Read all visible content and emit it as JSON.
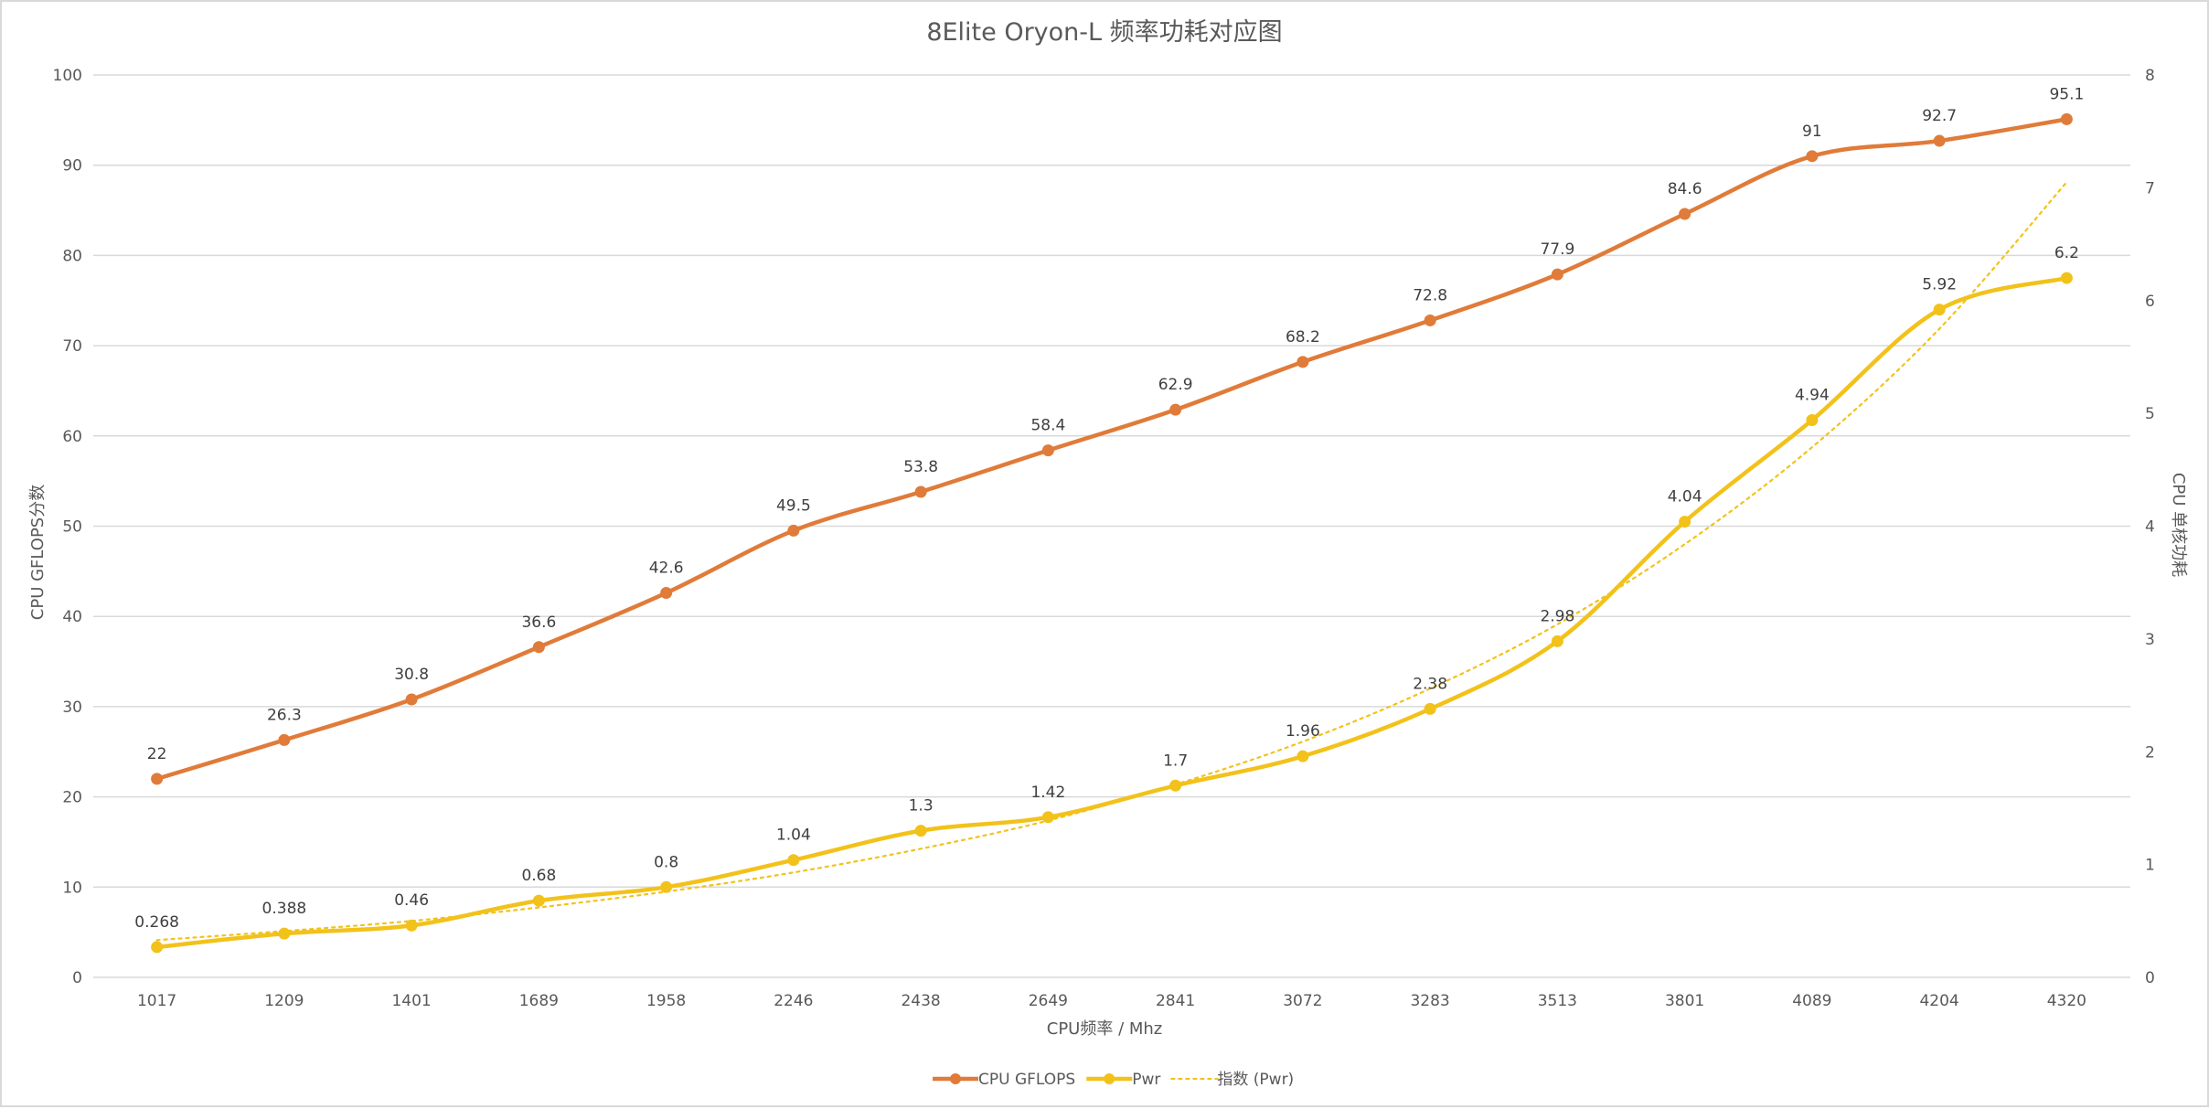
{
  "chart_data": {
    "type": "line",
    "title": "8Elite Oryon-L 频率功耗对应图",
    "xlabel": "CPU频率 / Mhz",
    "ylabel": "CPU GFLOPS分数",
    "y2label": "CPU 单核功耗",
    "categories": [
      "1017",
      "1209",
      "1401",
      "1689",
      "1958",
      "2246",
      "2438",
      "2649",
      "2841",
      "3072",
      "3283",
      "3513",
      "3801",
      "4089",
      "4204",
      "4320"
    ],
    "y_ticks": [
      "0",
      "10",
      "20",
      "30",
      "40",
      "50",
      "60",
      "70",
      "80",
      "90",
      "100"
    ],
    "y2_ticks": [
      "0",
      "1",
      "2",
      "3",
      "4",
      "5",
      "6",
      "7",
      "8"
    ],
    "ylim": [
      0,
      100
    ],
    "y2lim": [
      0,
      8
    ],
    "grid": true,
    "legend_position": "bottom",
    "series": [
      {
        "name": "CPU GFLOPS",
        "axis": "left",
        "color": "#E07B39",
        "values": [
          22,
          26.3,
          30.8,
          36.6,
          42.6,
          49.5,
          53.8,
          58.4,
          62.9,
          68.2,
          72.8,
          77.9,
          84.6,
          91,
          92.7,
          95.1
        ],
        "labels": [
          "22",
          "26.3",
          "30.8",
          "36.6",
          "42.6",
          "49.5",
          "53.8",
          "58.4",
          "62.9",
          "68.2",
          "72.8",
          "77.9",
          "84.6",
          "91",
          "92.7",
          "95.1"
        ]
      },
      {
        "name": "Pwr",
        "axis": "right",
        "color": "#F2C21B",
        "values": [
          0.268,
          0.388,
          0.46,
          0.68,
          0.8,
          1.04,
          1.3,
          1.42,
          1.7,
          1.96,
          2.38,
          2.98,
          4.04,
          4.94,
          5.92,
          6.2
        ],
        "labels": [
          "0.268",
          "0.388",
          "0.46",
          "0.68",
          "0.8",
          "1.04",
          "1.3",
          "1.42",
          "1.7",
          "1.96",
          "2.38",
          "2.98",
          "4.04",
          "4.94",
          "5.92",
          "6.2"
        ]
      },
      {
        "name": "指数 (Pwr)",
        "axis": "right",
        "type": "trendline",
        "color": "#F2C21B",
        "values": [
          0.33,
          0.41,
          0.5,
          0.62,
          0.76,
          0.93,
          1.14,
          1.39,
          1.71,
          2.09,
          2.56,
          3.13,
          3.84,
          4.7,
          5.75,
          7.05
        ]
      }
    ]
  }
}
